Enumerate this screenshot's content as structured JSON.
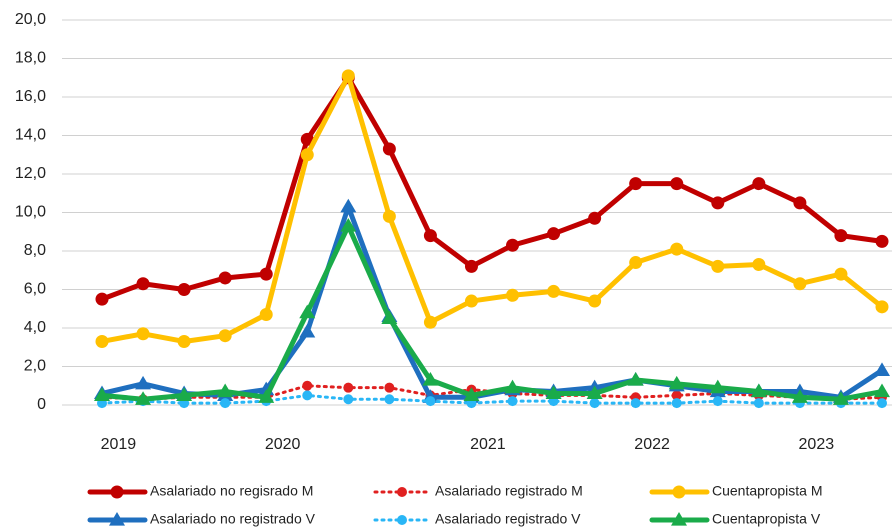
{
  "chart_data": {
    "type": "line",
    "categories": [
      "2019",
      null,
      null,
      null,
      "2020",
      null,
      null,
      null,
      null,
      "2021",
      null,
      null,
      null,
      "2022",
      null,
      null,
      null,
      "2023",
      null,
      null
    ],
    "ylim": [
      0,
      20
    ],
    "yticks": [
      0,
      {
        "value": 2,
        "label": "2,0"
      },
      {
        "value": 4,
        "label": "4,0"
      },
      {
        "value": 6,
        "label": "6,0"
      },
      {
        "value": 8,
        "label": "8,0"
      },
      {
        "value": 10,
        "label": "10,0"
      },
      {
        "value": 12,
        "label": "12,0"
      },
      {
        "value": 14,
        "label": "14,0"
      },
      {
        "value": 16,
        "label": "16,0"
      },
      {
        "value": 18,
        "label": "18,0"
      },
      {
        "value": 20,
        "label": "20,0"
      }
    ],
    "grid": true,
    "series": [
      {
        "name": "Asalariado no regisrado M",
        "color": "#c00000",
        "style": "solid",
        "marker": "circle",
        "values": [
          5.5,
          6.3,
          6.0,
          6.6,
          6.8,
          13.8,
          17.0,
          13.3,
          8.8,
          7.2,
          8.3,
          8.9,
          9.7,
          11.5,
          11.5,
          10.5,
          11.5,
          10.5,
          8.8,
          8.5
        ]
      },
      {
        "name": "Asalariado registrado M",
        "color": "#e02020",
        "style": "dotted",
        "marker": "circle",
        "values": [
          0.4,
          0.3,
          0.4,
          0.4,
          0.4,
          1.0,
          0.9,
          0.9,
          0.5,
          0.8,
          0.6,
          0.5,
          0.5,
          0.4,
          0.5,
          0.6,
          0.5,
          0.4,
          0.3,
          0.4
        ]
      },
      {
        "name": "Cuentapropista M",
        "color": "#ffc000",
        "style": "solid",
        "marker": "circle",
        "values": [
          3.3,
          3.7,
          3.3,
          3.6,
          4.7,
          13.0,
          17.1,
          9.8,
          4.3,
          5.4,
          5.7,
          5.9,
          5.4,
          7.4,
          8.1,
          7.2,
          7.3,
          6.3,
          6.8,
          5.1
        ]
      },
      {
        "name": "Asalariado no registrado V",
        "color": "#1f6fbf",
        "style": "solid",
        "marker": "triangle",
        "values": [
          0.6,
          1.1,
          0.6,
          0.5,
          0.8,
          3.8,
          10.3,
          4.6,
          0.4,
          0.4,
          0.8,
          0.7,
          0.9,
          1.3,
          1.0,
          0.7,
          0.7,
          0.7,
          0.4,
          1.8
        ]
      },
      {
        "name": "Asalariado registrado V",
        "color": "#29b6f6",
        "style": "dotted",
        "marker": "circle",
        "values": [
          0.1,
          0.2,
          0.1,
          0.1,
          0.2,
          0.5,
          0.3,
          0.3,
          0.2,
          0.1,
          0.2,
          0.2,
          0.1,
          0.1,
          0.1,
          0.2,
          0.1,
          0.1,
          0.1,
          0.1
        ]
      },
      {
        "name": "Cuentapropista V",
        "color": "#1aab4a",
        "style": "solid",
        "marker": "triangle",
        "values": [
          0.5,
          0.3,
          0.5,
          0.7,
          0.4,
          4.8,
          9.3,
          4.5,
          1.3,
          0.5,
          0.9,
          0.6,
          0.6,
          1.3,
          1.1,
          0.9,
          0.7,
          0.4,
          0.3,
          0.7
        ]
      }
    ]
  }
}
